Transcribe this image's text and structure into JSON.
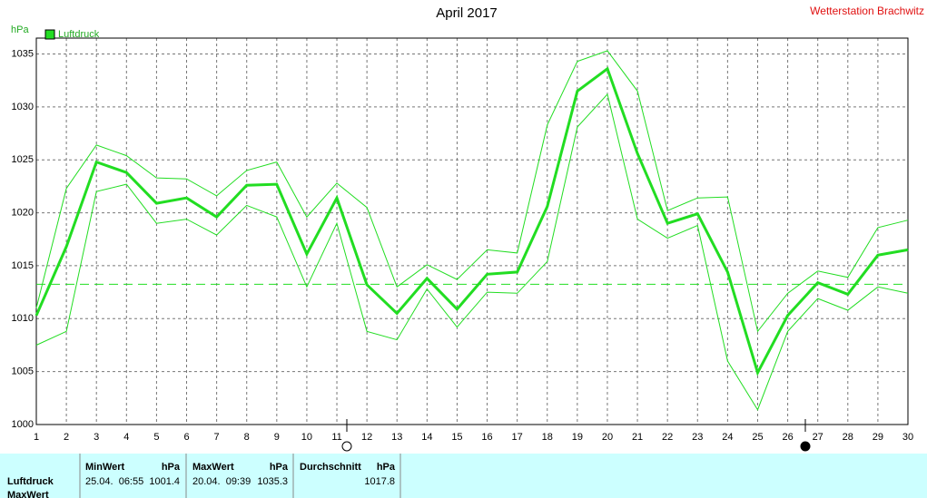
{
  "chart_data": {
    "type": "line",
    "title": "April 2017",
    "station": "Wetterstation Brachwitz",
    "y_unit": "hPa",
    "x": [
      1,
      2,
      3,
      4,
      5,
      6,
      7,
      8,
      9,
      10,
      11,
      12,
      13,
      14,
      15,
      16,
      17,
      18,
      19,
      20,
      21,
      22,
      23,
      24,
      25,
      26,
      27,
      28,
      29,
      30
    ],
    "xlim": [
      1,
      30
    ],
    "xticks": [
      1,
      2,
      3,
      4,
      5,
      6,
      7,
      8,
      9,
      10,
      11,
      12,
      13,
      14,
      15,
      16,
      17,
      18,
      19,
      20,
      21,
      22,
      23,
      24,
      25,
      26,
      27,
      28,
      29,
      30
    ],
    "ylim": [
      1000,
      1036.5
    ],
    "yticks": [
      1000,
      1005,
      1010,
      1015,
      1020,
      1025,
      1030,
      1035
    ],
    "grid": true,
    "hline": 1013.25,
    "series": [
      {
        "name": "Luftdruck",
        "color": "#22dd22",
        "values": [
          1010.3,
          1016.8,
          1024.8,
          1023.8,
          1020.9,
          1021.4,
          1019.6,
          1022.6,
          1022.7,
          1016.1,
          1021.4,
          1013.2,
          1010.5,
          1013.8,
          1010.9,
          1014.2,
          1014.4,
          1020.6,
          1031.5,
          1033.6,
          1025.6,
          1019.0,
          1019.9,
          1014.4,
          1004.9,
          1010.3,
          1013.4,
          1012.3,
          1016.0,
          1016.5
        ]
      },
      {
        "color": "#22dd22",
        "values": [
          1011.0,
          1022.3,
          1026.4,
          1025.4,
          1023.3,
          1023.2,
          1021.6,
          1024.0,
          1024.8,
          1019.6,
          1022.8,
          1020.5,
          1013.0,
          1015.1,
          1013.7,
          1016.5,
          1016.2,
          1028.3,
          1034.3,
          1035.3,
          1031.5,
          1020.2,
          1021.4,
          1021.5,
          1008.8,
          1012.4,
          1014.5,
          1013.9,
          1018.6,
          1019.3
        ]
      },
      {
        "color": "#22dd22",
        "values": [
          1007.5,
          1008.8,
          1022.0,
          1022.7,
          1019.0,
          1019.4,
          1017.9,
          1020.7,
          1019.6,
          1013.0,
          1019.0,
          1008.8,
          1008.0,
          1012.8,
          1009.2,
          1012.5,
          1012.4,
          1015.4,
          1028.1,
          1031.2,
          1019.4,
          1017.6,
          1018.8,
          1006.0,
          1001.4,
          1008.8,
          1011.9,
          1010.8,
          1013.0,
          1012.4
        ]
      }
    ]
  },
  "table": {
    "headers": [
      "MinWert",
      "hPa",
      "MaxWert",
      "hPa",
      "Durchschnitt",
      "hPa"
    ],
    "rows": [
      [
        "Luftdruck",
        "25.04.  06:55",
        "1001.4",
        "20.04.  09:39",
        "1035.3",
        "1017.8"
      ],
      [
        "MaxWert"
      ]
    ]
  }
}
